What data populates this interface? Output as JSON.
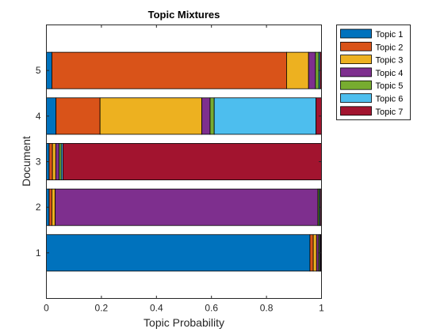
{
  "chart_data": {
    "type": "bar",
    "orientation": "horizontal",
    "stacked": true,
    "title": "Topic Mixtures",
    "xlabel": "Topic Probability",
    "ylabel": "Document",
    "xlim": [
      0,
      1
    ],
    "x_ticks": [
      "0",
      "0.2",
      "0.4",
      "0.6",
      "0.8",
      "1"
    ],
    "categories": [
      "1",
      "2",
      "3",
      "4",
      "5"
    ],
    "legend_position": "outside-top-right",
    "grid": false,
    "series": [
      {
        "name": "Topic 1",
        "color": "#0072bd",
        "values": [
          0.958,
          0.01,
          0.01,
          0.035,
          0.02
        ]
      },
      {
        "name": "Topic 2",
        "color": "#d95319",
        "values": [
          0.012,
          0.01,
          0.012,
          0.16,
          0.853
        ]
      },
      {
        "name": "Topic 3",
        "color": "#edb120",
        "values": [
          0.012,
          0.012,
          0.012,
          0.37,
          0.08
        ]
      },
      {
        "name": "Topic 4",
        "color": "#7e2f8e",
        "values": [
          0.008,
          0.955,
          0.012,
          0.03,
          0.025
        ]
      },
      {
        "name": "Topic 5",
        "color": "#77ac30",
        "values": [
          0.004,
          0.005,
          0.008,
          0.015,
          0.012
        ]
      },
      {
        "name": "Topic 6",
        "color": "#4dbeee",
        "values": [
          0.003,
          0.004,
          0.006,
          0.37,
          0.005
        ]
      },
      {
        "name": "Topic 7",
        "color": "#a2142f",
        "values": [
          0.003,
          0.004,
          0.94,
          0.02,
          0.005
        ]
      }
    ]
  }
}
